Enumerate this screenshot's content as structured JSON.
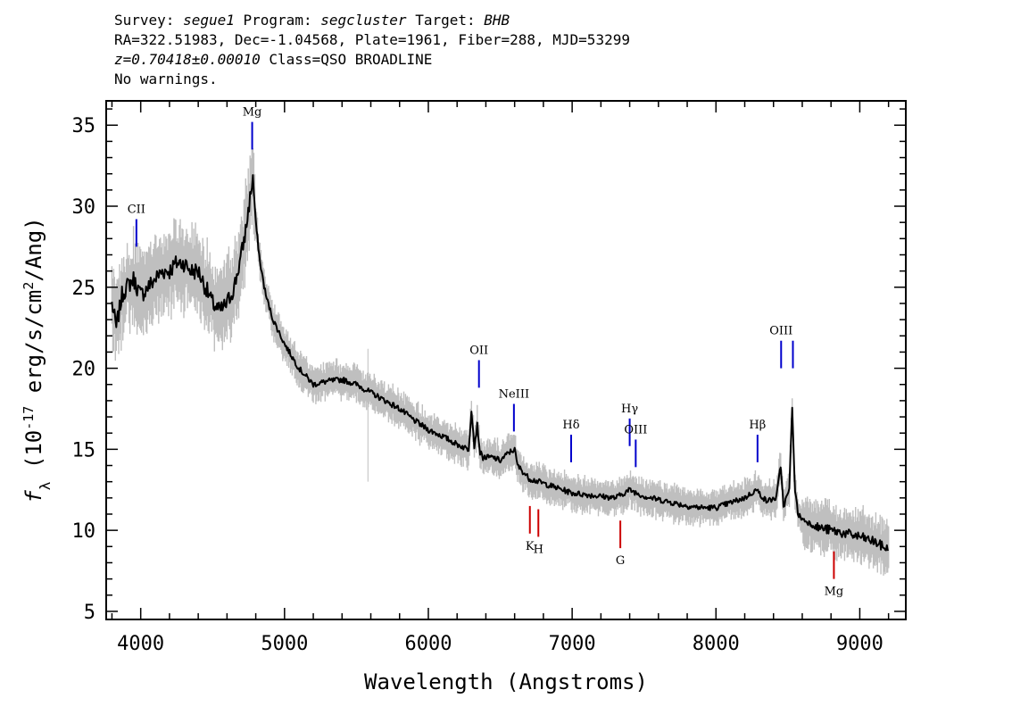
{
  "header": {
    "survey_label": "Survey:",
    "survey": "segue1",
    "program_label": "Program:",
    "program": "segcluster",
    "target_label": "Target:",
    "target": "BHB",
    "line2": "RA=322.51983, Dec=-1.04568, Plate=1961, Fiber=288, MJD=53299",
    "redshift": "z=0.70418±0.00010",
    "class_text": "Class=QSO BROADLINE",
    "warnings": "No warnings."
  },
  "chart_data": {
    "type": "line",
    "xlabel": "Wavelength (Angstroms)",
    "ylabel": "f_λ (10^-17 erg/s/cm^2/Ang)",
    "xlim": [
      3760,
      9320
    ],
    "ylim": [
      4.5,
      36.5
    ],
    "xticks": [
      4000,
      5000,
      6000,
      7000,
      8000,
      9000
    ],
    "yticks": [
      5,
      10,
      15,
      20,
      25,
      30,
      35
    ],
    "grid": false,
    "series": [
      {
        "color": "#000000",
        "x": [
          3800,
          3830,
          3870,
          3900,
          3950,
          4000,
          4050,
          4100,
          4150,
          4200,
          4250,
          4300,
          4350,
          4400,
          4450,
          4500,
          4550,
          4600,
          4650,
          4700,
          4730,
          4760,
          4780,
          4800,
          4830,
          4870,
          4920,
          5000,
          5100,
          5200,
          5300,
          5400,
          5500,
          5600,
          5700,
          5800,
          5900,
          6000,
          6100,
          6200,
          6280,
          6300,
          6320,
          6340,
          6360,
          6380,
          6450,
          6500,
          6560,
          6600,
          6620,
          6700,
          6800,
          6900,
          7000,
          7100,
          7200,
          7300,
          7400,
          7500,
          7600,
          7700,
          7800,
          7900,
          8000,
          8100,
          8200,
          8280,
          8350,
          8420,
          8450,
          8470,
          8490,
          8510,
          8530,
          8550,
          8570,
          8600,
          8700,
          8800,
          8900,
          9000,
          9100,
          9200
        ],
        "y": [
          24.0,
          22.5,
          24.5,
          25.0,
          25.5,
          24.5,
          25.0,
          25.5,
          26.0,
          26.0,
          26.5,
          26.5,
          26.0,
          26.0,
          25.0,
          24.0,
          23.5,
          24.0,
          25.0,
          27.0,
          28.5,
          30.5,
          31.8,
          29.0,
          26.5,
          24.5,
          23.0,
          21.5,
          20.0,
          19.0,
          19.2,
          19.3,
          19.0,
          18.5,
          18.0,
          17.5,
          16.8,
          16.2,
          15.8,
          15.3,
          15.0,
          17.5,
          15.2,
          16.5,
          14.8,
          14.5,
          14.5,
          14.3,
          14.8,
          15.0,
          14.0,
          13.2,
          12.9,
          12.6,
          12.3,
          12.2,
          12.1,
          12.0,
          12.5,
          12.1,
          11.9,
          11.7,
          11.5,
          11.4,
          11.4,
          11.7,
          12.0,
          12.5,
          11.8,
          12.0,
          14.0,
          11.5,
          12.0,
          12.5,
          17.5,
          12.5,
          11.0,
          10.7,
          10.2,
          10.0,
          9.8,
          9.6,
          9.3,
          8.8
        ]
      }
    ],
    "emission_lines": [
      {
        "label": "CII",
        "wavelength": 3970,
        "y_top": 29.2,
        "y_bottom": 27.5
      },
      {
        "label": "Mg",
        "wavelength": 4775,
        "y_top": 35.2,
        "y_bottom": 33.5
      },
      {
        "label": "OII",
        "wavelength": 6352,
        "y_top": 20.5,
        "y_bottom": 18.8
      },
      {
        "label": "NeIII",
        "wavelength": 6595,
        "y_top": 17.8,
        "y_bottom": 16.1
      },
      {
        "label": "Hδ",
        "wavelength": 6993,
        "y_top": 15.9,
        "y_bottom": 14.2
      },
      {
        "label": "Hγ",
        "wavelength": 7400,
        "y_top": 16.9,
        "y_bottom": 15.2
      },
      {
        "label": "OIII",
        "wavelength": 7442,
        "y_top": 15.6,
        "y_bottom": 13.9
      },
      {
        "label": "Hβ",
        "wavelength": 8289,
        "y_top": 15.9,
        "y_bottom": 14.2
      },
      {
        "label": "OIII",
        "wavelength": 8453,
        "y_top": 21.7,
        "y_bottom": 20.0
      },
      {
        "label": "",
        "wavelength": 8535,
        "y_top": 21.7,
        "y_bottom": 20.0
      }
    ],
    "absorption_lines": [
      {
        "label": "K",
        "wavelength": 6706,
        "y_top": 11.5,
        "y_bottom": 9.8
      },
      {
        "label": "H",
        "wavelength": 6765,
        "y_top": 11.3,
        "y_bottom": 9.6
      },
      {
        "label": "G",
        "wavelength": 7335,
        "y_top": 10.6,
        "y_bottom": 8.9
      },
      {
        "label": "Mg",
        "wavelength": 8820,
        "y_top": 8.7,
        "y_bottom": 7.0
      }
    ],
    "colors": {
      "emission": "#0000cc",
      "absorption": "#cc0000",
      "flux": "#000000",
      "error_band": "#bfbfbf"
    }
  }
}
